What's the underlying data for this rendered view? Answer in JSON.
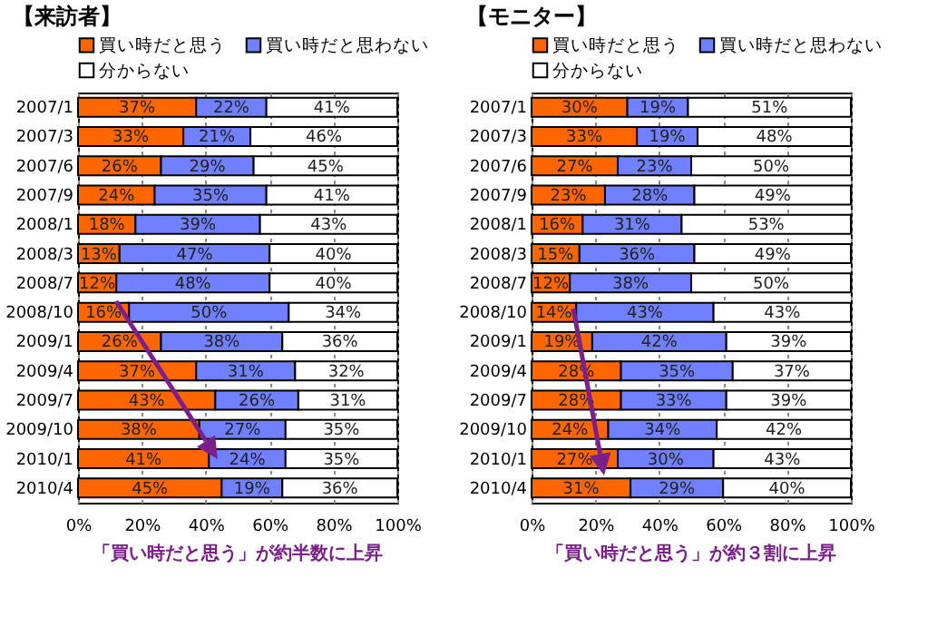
{
  "chart_data": [
    {
      "type": "bar",
      "orientation": "horizontal",
      "stacked": true,
      "title": "【来訪者】",
      "categories": [
        "2007/1",
        "2007/3",
        "2007/6",
        "2007/9",
        "2008/1",
        "2008/3",
        "2008/7",
        "2008/10",
        "2009/1",
        "2009/4",
        "2009/7",
        "2009/10",
        "2010/1",
        "2010/4"
      ],
      "series": [
        {
          "name": "買い時だと思う",
          "color": "#ff6600",
          "values": [
            37,
            33,
            26,
            24,
            18,
            13,
            12,
            16,
            26,
            37,
            43,
            38,
            41,
            45
          ],
          "value_labels": [
            "37%",
            "33%",
            "26%",
            "24%",
            "18%",
            "13%",
            "12%",
            "16%",
            "26%",
            "37%",
            "43%",
            "38%",
            "41%",
            "45%"
          ]
        },
        {
          "name": "買い時だと思わない",
          "color": "#7080ff",
          "values": [
            22,
            21,
            29,
            35,
            39,
            47,
            48,
            50,
            38,
            31,
            26,
            27,
            24,
            19
          ],
          "value_labels": [
            "22%",
            "21%",
            "29%",
            "35%",
            "39%",
            "47%",
            "48%",
            "50%",
            "38%",
            "31%",
            "26%",
            "27%",
            "24%",
            "19%"
          ]
        },
        {
          "name": "分からない",
          "color": "#ffffff",
          "values": [
            41,
            46,
            45,
            41,
            43,
            40,
            40,
            34,
            36,
            32,
            31,
            35,
            35,
            36
          ],
          "value_labels": [
            "41%",
            "46%",
            "45%",
            "41%",
            "43%",
            "40%",
            "40%",
            "34%",
            "36%",
            "32%",
            "31%",
            "35%",
            "35%",
            "36%"
          ]
        }
      ],
      "xlim": [
        0,
        100
      ],
      "xticks": [
        {
          "value": 0,
          "label": "0%"
        },
        {
          "value": 20,
          "label": "20%"
        },
        {
          "value": 40,
          "label": "40%"
        },
        {
          "value": 60,
          "label": "60%"
        },
        {
          "value": 80,
          "label": "80%"
        },
        {
          "value": 100,
          "label": "100%"
        }
      ],
      "grid": "x",
      "legend": "top",
      "annotations": [
        "「買い時だと思う」が約半数に上昇"
      ]
    },
    {
      "type": "bar",
      "orientation": "horizontal",
      "stacked": true,
      "title": "【モニター】",
      "categories": [
        "2007/1",
        "2007/3",
        "2007/6",
        "2007/9",
        "2008/1",
        "2008/3",
        "2008/7",
        "2008/10",
        "2009/1",
        "2009/4",
        "2009/7",
        "2009/10",
        "2010/1",
        "2010/4"
      ],
      "series": [
        {
          "name": "買い時だと思う",
          "color": "#ff6600",
          "values": [
            30,
            33,
            27,
            23,
            16,
            15,
            12,
            14,
            19,
            28,
            28,
            24,
            27,
            31
          ],
          "value_labels": [
            "30%",
            "33%",
            "27%",
            "23%",
            "16%",
            "15%",
            "12%",
            "14%",
            "19%",
            "28%",
            "28%",
            "24%",
            "27%",
            "31%"
          ]
        },
        {
          "name": "買い時だと思わない",
          "color": "#7080ff",
          "values": [
            19,
            19,
            23,
            28,
            31,
            36,
            38,
            43,
            42,
            35,
            33,
            34,
            30,
            29
          ],
          "value_labels": [
            "19%",
            "19%",
            "23%",
            "28%",
            "31%",
            "36%",
            "38%",
            "43%",
            "42%",
            "35%",
            "33%",
            "34%",
            "30%",
            "29%"
          ]
        },
        {
          "name": "分からない",
          "color": "#ffffff",
          "values": [
            51,
            48,
            50,
            49,
            53,
            49,
            50,
            43,
            39,
            37,
            39,
            42,
            43,
            40
          ],
          "value_labels": [
            "51%",
            "48%",
            "50%",
            "49%",
            "53%",
            "49%",
            "50%",
            "43%",
            "39%",
            "37%",
            "39%",
            "42%",
            "43%",
            "40%"
          ]
        }
      ],
      "xlim": [
        0,
        100
      ],
      "xticks": [
        {
          "value": 0,
          "label": "0%"
        },
        {
          "value": 20,
          "label": "20%"
        },
        {
          "value": 40,
          "label": "40%"
        },
        {
          "value": 60,
          "label": "60%"
        },
        {
          "value": 80,
          "label": "80%"
        },
        {
          "value": 100,
          "label": "100%"
        }
      ],
      "grid": "x",
      "legend": "top",
      "annotations": [
        "「買い時だと思う」が約３割に上昇"
      ]
    }
  ]
}
